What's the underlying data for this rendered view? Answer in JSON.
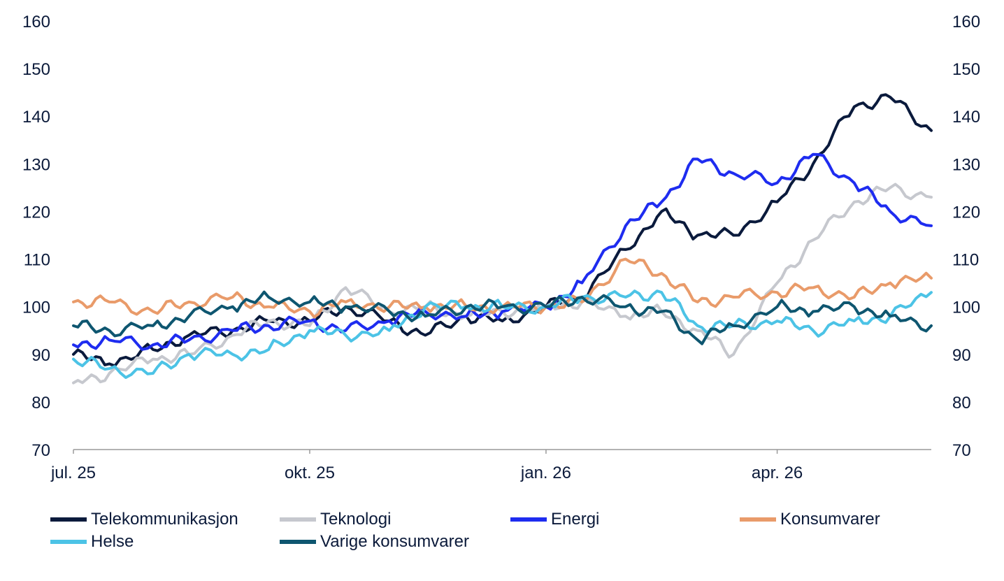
{
  "chart_data": {
    "type": "line",
    "title": "",
    "xlabel": "",
    "ylabel": "",
    "ylim": [
      70,
      160
    ],
    "yticks": [
      70,
      80,
      90,
      100,
      110,
      120,
      130,
      140,
      150,
      160
    ],
    "y_axis_both_sides": true,
    "grid": false,
    "legend_position": "bottom",
    "x_tick_labels": [
      "jul. 25",
      "okt. 25",
      "jan. 26",
      "apr. 26"
    ],
    "x_range": [
      "2025-07-01",
      "2026-05-31"
    ],
    "x": [
      "2025-07-01",
      "2025-07-15",
      "2025-08-01",
      "2025-08-15",
      "2025-09-01",
      "2025-09-15",
      "2025-10-01",
      "2025-10-15",
      "2025-11-01",
      "2025-11-15",
      "2025-12-01",
      "2025-12-15",
      "2026-01-01",
      "2026-01-15",
      "2026-02-01",
      "2026-02-15",
      "2026-03-01",
      "2026-03-15",
      "2026-04-01",
      "2026-04-15",
      "2026-05-01",
      "2026-05-15",
      "2026-05-31"
    ],
    "series": [
      {
        "name": "Telekommunikasjon",
        "color": "#0a1a3c",
        "values": [
          90,
          88,
          91,
          94,
          95,
          97,
          97,
          100,
          97,
          94,
          98,
          97,
          100,
          102,
          112,
          120,
          115,
          115,
          122,
          130,
          142,
          144,
          137
        ]
      },
      {
        "name": "Teknologi",
        "color": "#c6c8ce",
        "values": [
          84,
          86,
          89,
          90,
          94,
          97,
          96,
          104,
          99,
          100,
          98,
          99,
          100,
          101,
          98,
          99,
          95,
          90,
          105,
          114,
          122,
          125,
          123
        ]
      },
      {
        "name": "Energi",
        "color": "#1e2cf0",
        "values": [
          92,
          93,
          92,
          93,
          95,
          96,
          97,
          95,
          97,
          99,
          98,
          99,
          100,
          105,
          117,
          122,
          131,
          128,
          126,
          132,
          126,
          120,
          117
        ]
      },
      {
        "name": "Konsumvarer",
        "color": "#e99b6a",
        "values": [
          101,
          101,
          99,
          101,
          102,
          100,
          99,
          101,
          100,
          100,
          100,
          100,
          100,
          101,
          110,
          107,
          101,
          102,
          103,
          104,
          102,
          105,
          106
        ]
      },
      {
        "name": "Helse",
        "color": "#4cc3e6",
        "values": [
          89,
          87,
          86,
          90,
          90,
          91,
          95,
          94,
          95,
          100,
          100,
          100,
          100,
          102,
          102,
          103,
          96,
          96,
          97,
          95,
          97,
          98,
          103
        ]
      },
      {
        "name": "Varige konsumvarer",
        "color": "#0e5670",
        "values": [
          96,
          95,
          96,
          98,
          100,
          102,
          101,
          100,
          99,
          98,
          100,
          100,
          100,
          102,
          100,
          99,
          93,
          96,
          100,
          99,
          100,
          98,
          96
        ]
      }
    ]
  }
}
